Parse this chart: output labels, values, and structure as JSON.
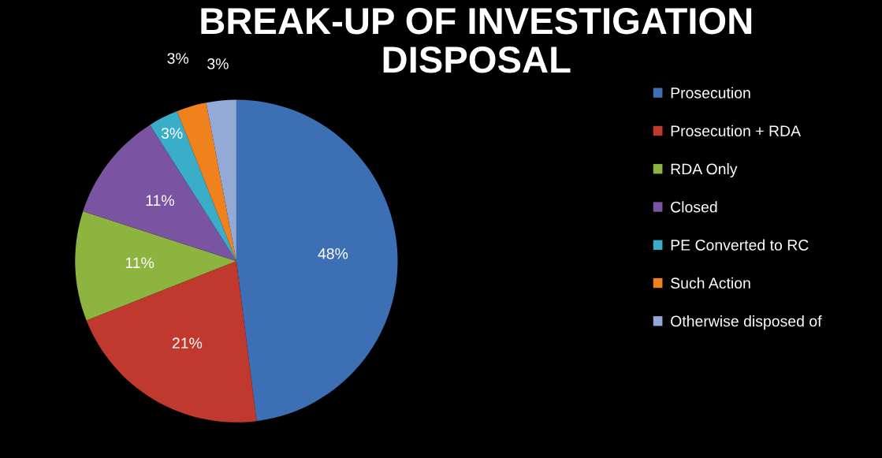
{
  "chart_data": {
    "type": "pie",
    "title": "BREAK-UP OF INVESTIGATION\nDISPOSAL",
    "categories": [
      "Prosecution",
      "Prosecution + RDA",
      "RDA Only",
      "Closed",
      "PE Converted to RC",
      "Such Action",
      "Otherwise disposed of"
    ],
    "values": [
      48,
      21,
      11,
      11,
      3,
      3,
      3
    ],
    "colors": [
      "#3d6fb5",
      "#c0392f",
      "#8db43f",
      "#7a54a0",
      "#3aaec8",
      "#f0821e",
      "#93a9d6"
    ],
    "value_labels": [
      "48%",
      "21%",
      "11%",
      "11%",
      "3%",
      "3%",
      "3%"
    ],
    "legend": "right"
  }
}
